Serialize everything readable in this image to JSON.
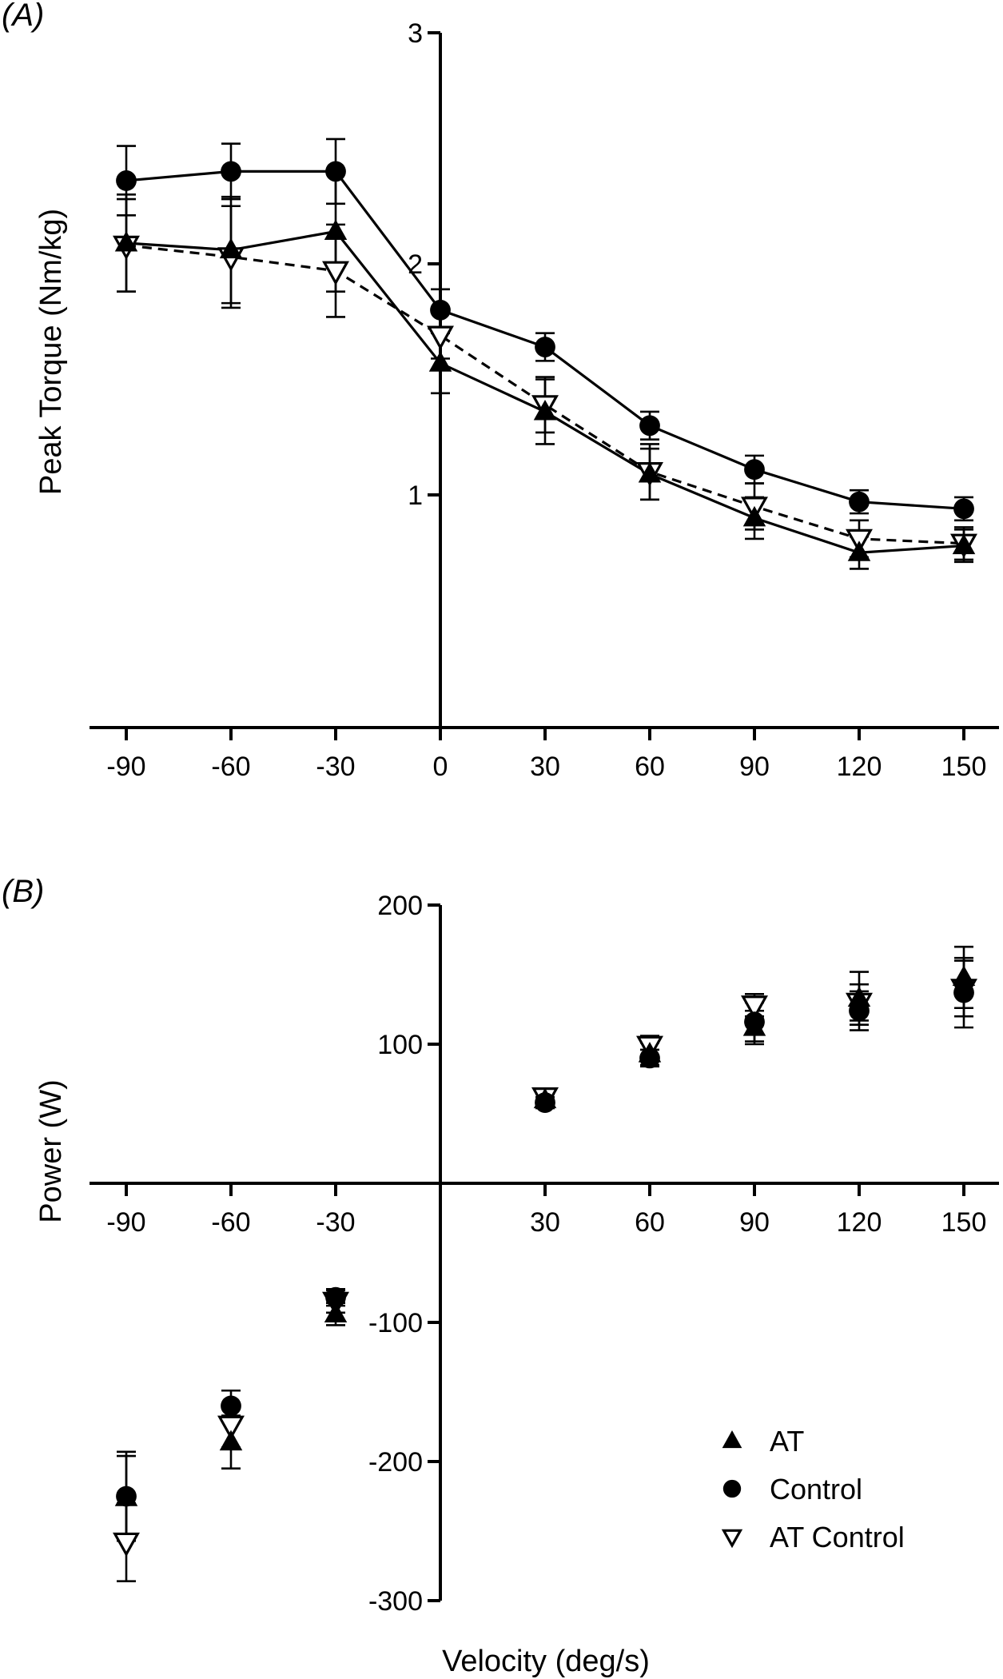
{
  "figure": {
    "panels": [
      "(A)",
      "(B)"
    ]
  },
  "legend": {
    "items": [
      {
        "label": "AT",
        "marker": "filled-triangle-up"
      },
      {
        "label": "Control",
        "marker": "filled-circle"
      },
      {
        "label": "AT Control",
        "marker": "open-triangle-down"
      }
    ]
  },
  "chart_data": [
    {
      "panel": "(A)",
      "type": "line",
      "title": "",
      "xlabel": "",
      "ylabel": "Peak Torque (Nm/kg)",
      "x": [
        -90,
        -60,
        -30,
        0,
        30,
        60,
        90,
        120,
        150
      ],
      "x_tick_labels": [
        "-90",
        "-60",
        "-30",
        "0",
        "30",
        "60",
        "90",
        "120",
        "150"
      ],
      "y_ticks": [
        1,
        2,
        3
      ],
      "y_tick_labels": [
        "1",
        "2",
        "3"
      ],
      "xlim": [
        -100,
        160
      ],
      "ylim": [
        0,
        3
      ],
      "grid": false,
      "series": [
        {
          "name": "Control",
          "marker": "filled-circle",
          "line": "solid",
          "values": [
            2.36,
            2.4,
            2.4,
            1.8,
            1.64,
            1.3,
            1.11,
            0.97,
            0.94
          ],
          "error": [
            0.15,
            0.12,
            0.14,
            0.09,
            0.06,
            0.06,
            0.06,
            0.05,
            0.05
          ]
        },
        {
          "name": "AT",
          "marker": "filled-triangle-up",
          "line": "solid",
          "values": [
            2.09,
            2.06,
            2.14,
            1.57,
            1.36,
            1.09,
            0.9,
            0.75,
            0.78
          ],
          "error": [
            0.21,
            0.23,
            0.26,
            0.13,
            0.14,
            0.11,
            0.09,
            0.07,
            0.07
          ]
        },
        {
          "name": "AT Control",
          "marker": "open-triangle-down",
          "line": "dashed",
          "values": [
            2.08,
            2.03,
            1.97,
            1.69,
            1.39,
            1.1,
            0.95,
            0.81,
            0.79
          ],
          "error": [
            0.2,
            0.22,
            0.2,
            0.1,
            0.12,
            0.12,
            0.1,
            0.08,
            0.07
          ]
        }
      ]
    },
    {
      "panel": "(B)",
      "type": "scatter",
      "title": "",
      "xlabel": "Velocity (deg/s)",
      "ylabel": "Power (W)",
      "x": [
        -90,
        -60,
        -30,
        30,
        60,
        90,
        120,
        150
      ],
      "x_tick_labels": [
        "-90",
        "-60",
        "-30",
        "30",
        "60",
        "90",
        "120",
        "150"
      ],
      "y_ticks": [
        -300,
        -200,
        -100,
        100,
        200
      ],
      "y_tick_labels": [
        "-300",
        "-200",
        "-100",
        "100",
        "200"
      ],
      "xlim": [
        -100,
        160
      ],
      "ylim": [
        -300,
        200
      ],
      "grid": false,
      "legend_position": "bottom-right",
      "series": [
        {
          "name": "AT",
          "marker": "filled-triangle-up",
          "values": [
            -226,
            -186,
            -94,
            60,
            93,
            112,
            133,
            148
          ],
          "error": [
            30,
            19,
            8,
            4,
            8,
            12,
            19,
            22
          ]
        },
        {
          "name": "Control",
          "marker": "filled-circle",
          "values": [
            -225,
            -160,
            -82,
            58,
            90,
            116,
            124,
            137
          ],
          "error": [
            32,
            11,
            6,
            4,
            6,
            14,
            14,
            25
          ]
        },
        {
          "name": "AT Control",
          "marker": "open-triangle-down",
          "values": [
            -258,
            -174,
            -85,
            62,
            99,
            128,
            130,
            140
          ],
          "error": [
            28,
            16,
            8,
            4,
            7,
            8,
            13,
            20
          ]
        }
      ]
    }
  ]
}
